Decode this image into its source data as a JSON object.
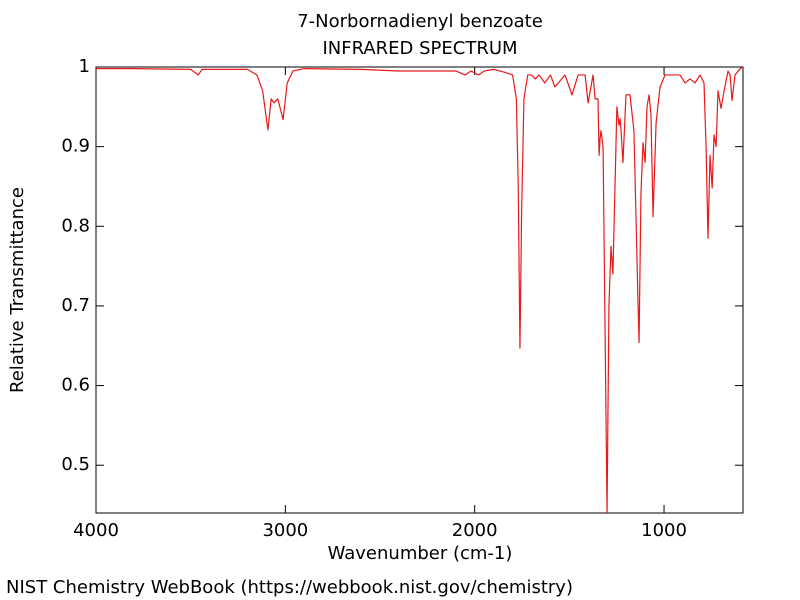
{
  "chart_data": {
    "type": "line",
    "title": "7-Norbornadienyl benzoate",
    "subtitle": "INFRARED SPECTRUM",
    "x_label": "Wavenumber (cm-1)",
    "y_label": "Relative Transmittance",
    "source": "NIST Chemistry WebBook (https://webbook.nist.gov/chemistry)",
    "color": "#e8191a",
    "x": [
      4000,
      3800,
      3500,
      3460,
      3440,
      3200,
      3150,
      3120,
      3092,
      3075,
      3060,
      3040,
      3012,
      2990,
      2960,
      2900,
      2600,
      2400,
      2100,
      2050,
      2020,
      1980,
      1950,
      1900,
      1850,
      1800,
      1780,
      1770,
      1761,
      1752,
      1740,
      1720,
      1700,
      1680,
      1660,
      1630,
      1600,
      1576,
      1523,
      1486,
      1454,
      1417,
      1401,
      1375,
      1364,
      1349,
      1343,
      1338,
      1333,
      1322,
      1301,
      1291,
      1280,
      1270,
      1249,
      1238,
      1232,
      1227,
      1217,
      1201,
      1180,
      1159,
      1137,
      1132,
      1122,
      1111,
      1100,
      1090,
      1079,
      1069,
      1058,
      1042,
      1021,
      995,
      916,
      889,
      863,
      836,
      810,
      789,
      778,
      768,
      757,
      746,
      736,
      725,
      715,
      699,
      683,
      662,
      651,
      641,
      625,
      598,
      583
    ],
    "values": [
      0.998,
      0.998,
      0.997,
      0.99,
      0.997,
      0.997,
      0.99,
      0.97,
      0.921,
      0.96,
      0.955,
      0.96,
      0.934,
      0.98,
      0.995,
      0.998,
      0.997,
      0.995,
      0.995,
      0.99,
      0.995,
      0.99,
      0.995,
      0.997,
      0.994,
      0.99,
      0.96,
      0.85,
      0.647,
      0.82,
      0.96,
      0.99,
      0.99,
      0.985,
      0.99,
      0.98,
      0.99,
      0.975,
      0.99,
      0.965,
      0.99,
      0.99,
      0.955,
      0.99,
      0.96,
      0.96,
      0.889,
      0.91,
      0.92,
      0.9,
      0.44,
      0.7,
      0.775,
      0.74,
      0.95,
      0.927,
      0.935,
      0.92,
      0.88,
      0.965,
      0.965,
      0.92,
      0.7,
      0.654,
      0.84,
      0.905,
      0.88,
      0.95,
      0.965,
      0.94,
      0.812,
      0.93,
      0.975,
      0.99,
      0.99,
      0.98,
      0.985,
      0.98,
      0.99,
      0.98,
      0.9,
      0.785,
      0.889,
      0.848,
      0.915,
      0.9,
      0.97,
      0.948,
      0.97,
      0.995,
      0.99,
      0.958,
      0.99,
      0.998,
      1.0
    ],
    "xlim": [
      4000,
      583
    ],
    "ylim": [
      0.44,
      1
    ],
    "xticks": [
      4000,
      3000,
      2000,
      1000
    ],
    "yticks": [
      0.5,
      0.6,
      0.7,
      0.8,
      0.9,
      1
    ]
  }
}
